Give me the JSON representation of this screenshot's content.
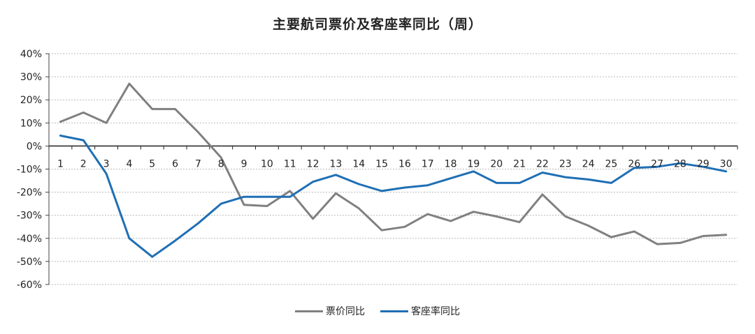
{
  "chart_data": {
    "type": "line",
    "title": "主要航司票价及客座率同比（周）",
    "xlabel": "",
    "ylabel": "",
    "x": [
      "1",
      "2",
      "3",
      "4",
      "5",
      "6",
      "7",
      "8",
      "9",
      "10",
      "11",
      "12",
      "13",
      "14",
      "15",
      "16",
      "17",
      "18",
      "19",
      "20",
      "21",
      "22",
      "23",
      "24",
      "25",
      "26",
      "27",
      "28",
      "29",
      "30"
    ],
    "ylim": [
      -60,
      40
    ],
    "yticks": [
      "40%",
      "30%",
      "20%",
      "10%",
      "0%",
      "-10%",
      "-20%",
      "-30%",
      "-40%",
      "-50%",
      "-60%"
    ],
    "ytick_values": [
      40,
      30,
      20,
      10,
      0,
      -10,
      -20,
      -30,
      -40,
      -50,
      -60
    ],
    "grid": true,
    "legend_position": "bottom-center",
    "series": [
      {
        "name": "票价同比",
        "color": "#808080",
        "values": [
          10.5,
          14.5,
          10,
          27,
          16,
          16,
          6,
          -5,
          -25.5,
          -26,
          -19.5,
          -31.5,
          -20.5,
          -27,
          -36.5,
          -35,
          -29.5,
          -32.5,
          -28.5,
          -30.5,
          -33,
          -21,
          -30.5,
          -34.5,
          -39.5,
          -37,
          -42.5,
          -42,
          -39,
          -38.5
        ]
      },
      {
        "name": "客座率同比",
        "color": "#1f6fb4",
        "values": [
          4.5,
          2.5,
          -12,
          -40,
          -48,
          -41,
          -33.5,
          -25,
          -22,
          -22,
          -22,
          -15.5,
          -12.5,
          -16.5,
          -19.5,
          -18,
          -17,
          -14,
          -11,
          -16,
          -16,
          -11.5,
          -13.5,
          -14.5,
          -16,
          -9.5,
          -9,
          -7.5,
          -9,
          -11
        ]
      }
    ]
  }
}
